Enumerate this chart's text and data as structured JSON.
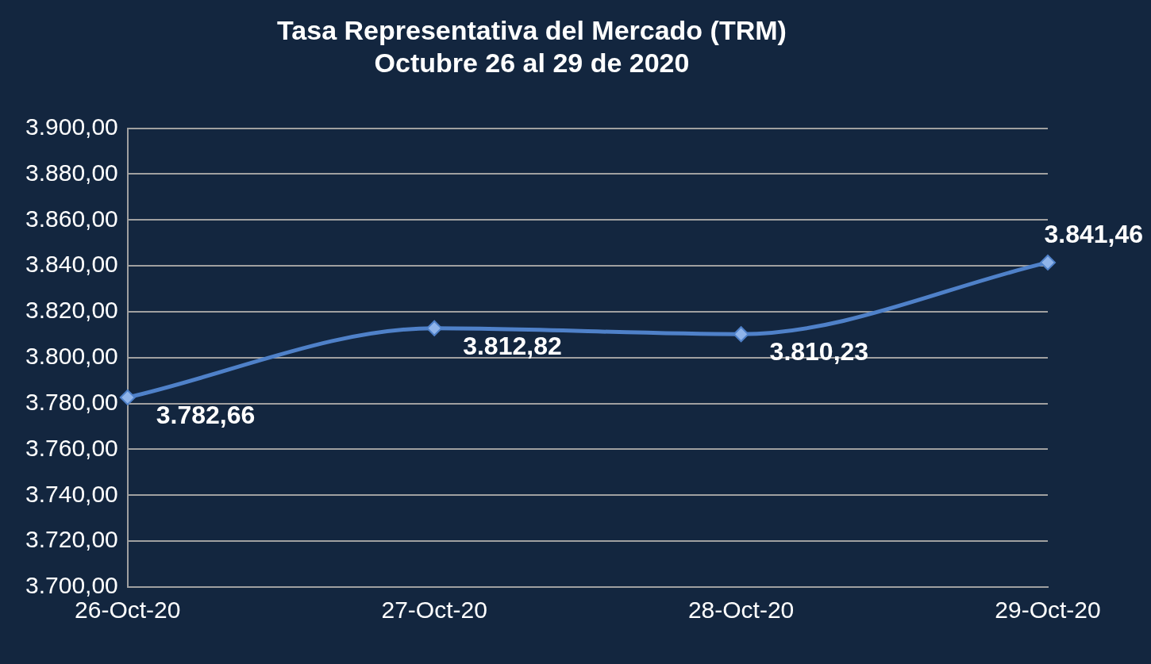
{
  "chart_data": {
    "type": "line",
    "title": "Tasa Representativa del Mercado (TRM)",
    "subtitle": "Octubre 26 al 29 de 2020",
    "categories": [
      "26-Oct-20",
      "27-Oct-20",
      "28-Oct-20",
      "29-Oct-20"
    ],
    "series": [
      {
        "color": "#4f81c9",
        "values": [
          3782.66,
          3812.82,
          3810.23,
          3841.46
        ],
        "value_labels": [
          "3.782,66",
          "3.812,82",
          "3.810,23",
          "3.841,46"
        ]
      }
    ],
    "ylim": [
      3700,
      3900
    ],
    "yticks": [
      {
        "value": 3700,
        "label": "3.700,00"
      },
      {
        "value": 3720,
        "label": "3.720,00"
      },
      {
        "value": 3740,
        "label": "3.740,00"
      },
      {
        "value": 3760,
        "label": "3.760,00"
      },
      {
        "value": 3780,
        "label": "3.780,00"
      },
      {
        "value": 3800,
        "label": "3.800,00"
      },
      {
        "value": 3820,
        "label": "3.820,00"
      },
      {
        "value": 3840,
        "label": "3.840,00"
      },
      {
        "value": 3860,
        "label": "3.860,00"
      },
      {
        "value": 3880,
        "label": "3.880,00"
      },
      {
        "value": 3900,
        "label": "3.900,00"
      }
    ],
    "grid": "y",
    "legend": false,
    "marker": "diamond",
    "line_style": "solid"
  }
}
